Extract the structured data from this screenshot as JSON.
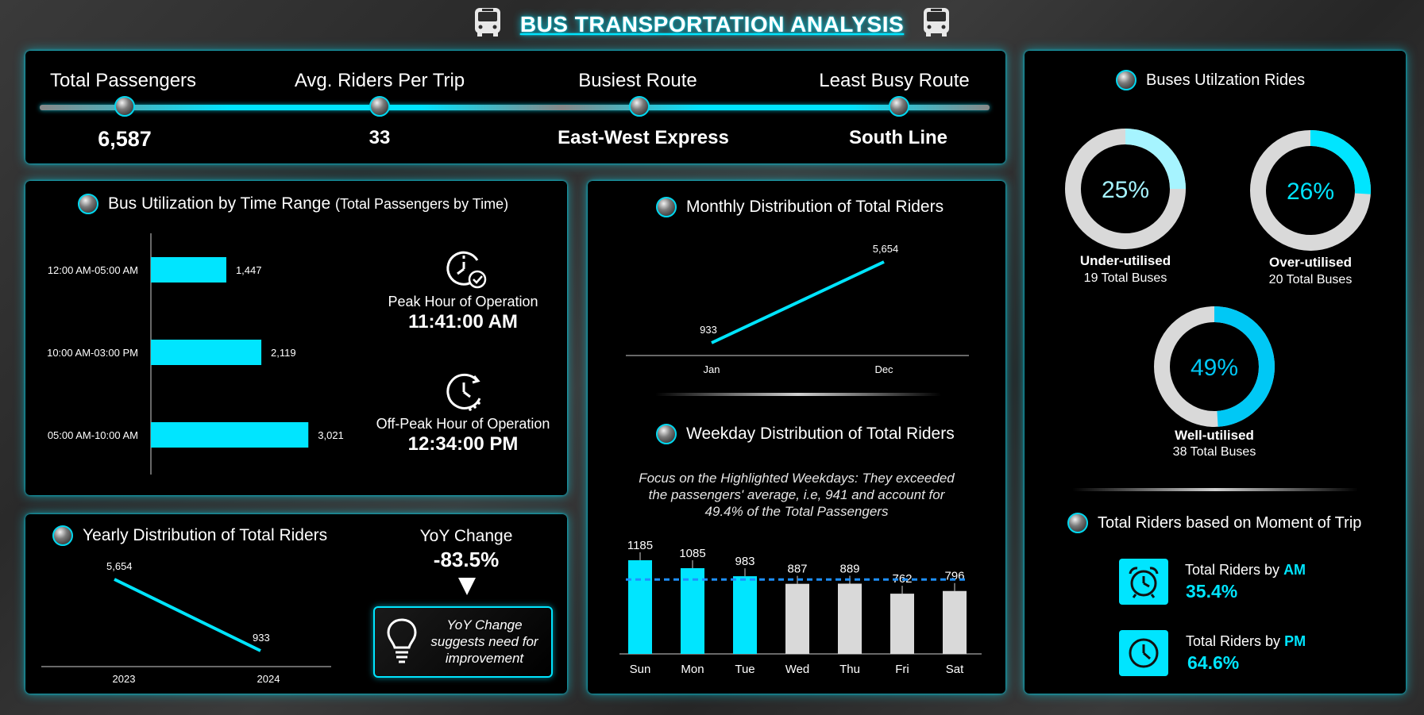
{
  "header": {
    "title": "BUS TRANSPORTATION ANALYSIS",
    "icon": "bus-icon"
  },
  "kpis": [
    {
      "label": "Total Passengers",
      "value": "6,587"
    },
    {
      "label": "Avg. Riders Per Trip",
      "value": "33"
    },
    {
      "label": "Busiest Route",
      "value": "East-West Express"
    },
    {
      "label": "Least Busy Route",
      "value": "South Line"
    }
  ],
  "time_range": {
    "title": "Bus Utilization by Time Range",
    "subtitle": "(Total Passengers by Time)",
    "peak_label": "Peak Hour of Operation",
    "peak_value": "11:41:00 AM",
    "offpeak_label": "Off-Peak Hour of Operation",
    "offpeak_value": "12:34:00 PM"
  },
  "yearly": {
    "title": "Yearly Distribution of Total Riders",
    "yoy_label": "YoY Change",
    "yoy_value": "-83.5%",
    "yoy_note": [
      "YoY Change",
      "suggests need for",
      "improvement"
    ]
  },
  "monthly": {
    "title": "Monthly Distribution of Total Riders"
  },
  "weekday": {
    "title": "Weekday Distribution of Total Riders",
    "note": [
      "Focus on the Highlighted Weekdays: They exceeded",
      "the passengers' average, i.e, 941 and account for",
      "49.4% of the Total Passengers"
    ]
  },
  "utilization": {
    "title": "Buses Utilzation Rides",
    "rings": [
      {
        "pct_text": "25%",
        "pct": 0.25,
        "label": "Under-utilised",
        "sub": "19 Total Buses",
        "label_color": "#a6f4ff",
        "fill_color": "#a6f4ff",
        "text_color": "#a6f4ff"
      },
      {
        "pct_text": "26%",
        "pct": 0.26,
        "label": "Over-utilised",
        "sub": "20 Total Buses",
        "label_color": "#00e5ff",
        "fill_color": "#00e5ff",
        "text_color": "#00e5ff"
      },
      {
        "pct_text": "49%",
        "pct": 0.49,
        "label": "Well-utilised",
        "sub": "38 Total Buses",
        "label_color": "#00d0ff",
        "fill_color": "#00c8f5",
        "text_color": "#00c8f5"
      }
    ]
  },
  "moment": {
    "title": "Total Riders based on Moment of Trip",
    "am_prefix": "Total Riders by ",
    "am_word": "AM",
    "am_value": "35.4%",
    "pm_prefix": "Total Riders by ",
    "pm_word": "PM",
    "pm_value": "64.6%"
  },
  "colors": {
    "accent": "#00e5ff",
    "light_accent": "#a6f4ff",
    "grey_bar": "#d9d9d9",
    "avg_line": "#1e90ff"
  },
  "chart_data": [
    {
      "id": "time_range",
      "type": "bar",
      "orientation": "horizontal",
      "categories": [
        "12:00 AM-05:00 AM",
        "10:00 AM-03:00 PM",
        "05:00 AM-10:00 AM"
      ],
      "values": [
        1447,
        2119,
        3021
      ],
      "data_labels": [
        "1,447",
        "2,119",
        "3,021"
      ],
      "title": "Bus Utilization by Time Range (Total Passengers by Time)"
    },
    {
      "id": "yearly",
      "type": "line",
      "x": [
        "2023",
        "2024"
      ],
      "values": [
        5654,
        933
      ],
      "data_labels": [
        "5,654",
        "933"
      ],
      "title": "Yearly Distribution of Total Riders"
    },
    {
      "id": "monthly",
      "type": "line",
      "x": [
        "Jan",
        "Dec"
      ],
      "values": [
        933,
        5654
      ],
      "data_labels": [
        "933",
        "5,654"
      ],
      "title": "Monthly Distribution of Total Riders"
    },
    {
      "id": "weekday",
      "type": "bar",
      "categories": [
        "Sun",
        "Mon",
        "Tue",
        "Wed",
        "Thu",
        "Fri",
        "Sat"
      ],
      "values": [
        1185,
        1085,
        983,
        887,
        889,
        762,
        796
      ],
      "highlighted": [
        true,
        true,
        true,
        false,
        false,
        false,
        false
      ],
      "average": 941,
      "title": "Weekday Distribution of Total Riders"
    }
  ]
}
